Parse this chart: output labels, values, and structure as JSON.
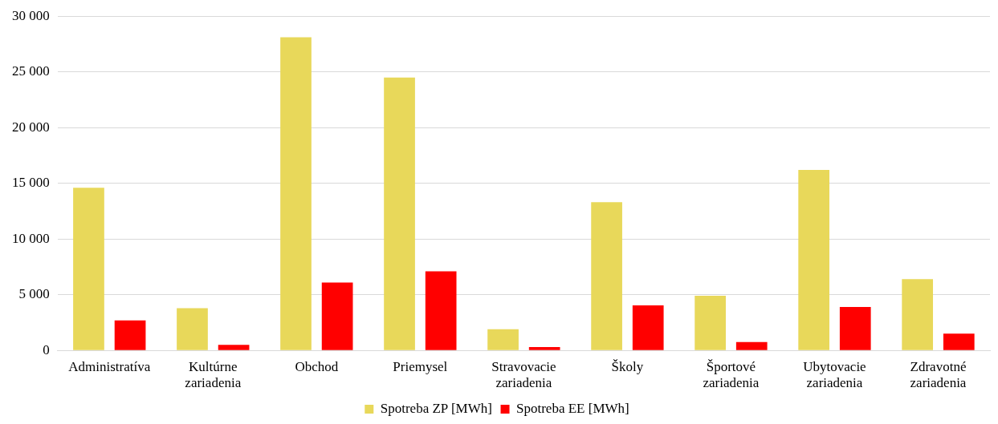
{
  "chart_data": {
    "type": "bar",
    "categories": [
      "Administratíva",
      "Kultúrne zariadenia",
      "Obchod",
      "Priemysel",
      "Stravovacie zariadenia",
      "Školy",
      "Športové zariadenia",
      "Ubytovacie zariadenia",
      "Zdravotné zariadenia"
    ],
    "series": [
      {
        "name": "Spotreba ZP [MWh]",
        "color": "#e8d85a",
        "values": [
          14600,
          3800,
          28100,
          24500,
          1900,
          13300,
          4900,
          16200,
          6400
        ]
      },
      {
        "name": "Spotreba EE [MWh]",
        "color": "#ff0000",
        "values": [
          2700,
          500,
          6100,
          7100,
          300,
          4050,
          750,
          3900,
          1500
        ]
      }
    ],
    "ylim": [
      0,
      30000
    ],
    "yticks": [
      {
        "value": 0,
        "label": "0"
      },
      {
        "value": 5000,
        "label": "5 000"
      },
      {
        "value": 10000,
        "label": "10 000"
      },
      {
        "value": 15000,
        "label": "15 000"
      },
      {
        "value": 20000,
        "label": "20 000"
      },
      {
        "value": 25000,
        "label": "25 000"
      },
      {
        "value": 30000,
        "label": "30 000"
      }
    ],
    "grid": "y",
    "legend": "bottom"
  }
}
